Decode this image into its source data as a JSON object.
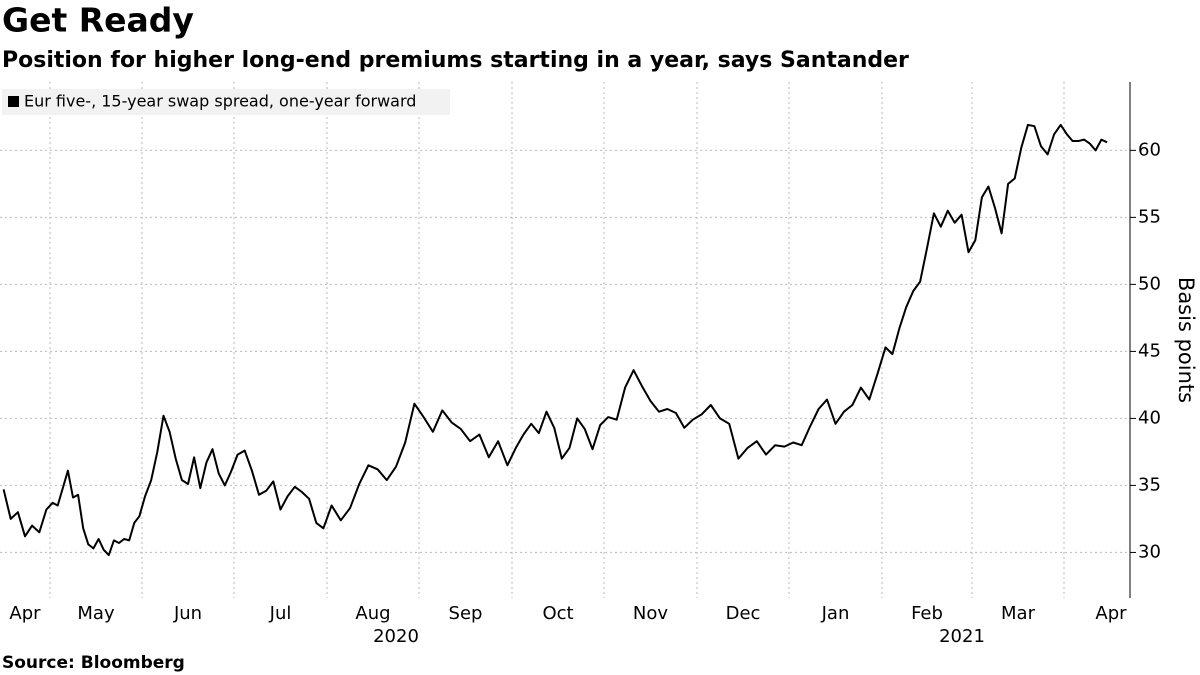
{
  "chart_data": {
    "type": "line",
    "title": "Get Ready",
    "subtitle": "Position for higher long-end premiums starting in a year, says Santander",
    "source": "Source: Bloomberg",
    "y_label": "Basis points",
    "x": [
      "2020-04",
      "2020-04",
      "2020-04",
      "2020-04",
      "2020-04",
      "2020-04",
      "2020-04",
      "2020-05",
      "2020-05",
      "2020-05",
      "2020-05",
      "2020-05",
      "2020-05",
      "2020-05",
      "2020-05",
      "2020-05",
      "2020-05",
      "2020-05",
      "2020-05",
      "2020-05",
      "2020-05",
      "2020-05",
      "2020-05",
      "2020-05",
      "2020-05",
      "2020-06",
      "2020-06",
      "2020-06",
      "2020-06",
      "2020-06",
      "2020-06",
      "2020-06",
      "2020-06",
      "2020-06",
      "2020-06",
      "2020-06",
      "2020-06",
      "2020-06",
      "2020-06",
      "2020-06",
      "2020-07",
      "2020-07",
      "2020-07",
      "2020-07",
      "2020-07",
      "2020-07",
      "2020-07",
      "2020-07",
      "2020-07",
      "2020-07",
      "2020-07",
      "2020-07",
      "2020-07",
      "2020-08",
      "2020-08",
      "2020-08",
      "2020-08",
      "2020-08",
      "2020-08",
      "2020-08",
      "2020-08",
      "2020-08",
      "2020-08",
      "2020-09",
      "2020-09",
      "2020-09",
      "2020-09",
      "2020-09",
      "2020-09",
      "2020-09",
      "2020-09",
      "2020-09",
      "2020-09",
      "2020-10",
      "2020-10",
      "2020-10",
      "2020-10",
      "2020-10",
      "2020-10",
      "2020-10",
      "2020-10",
      "2020-10",
      "2020-10",
      "2020-10",
      "2020-10",
      "2020-11",
      "2020-11",
      "2020-11",
      "2020-11",
      "2020-11",
      "2020-11",
      "2020-11",
      "2020-11",
      "2020-11",
      "2020-11",
      "2020-11",
      "2020-12",
      "2020-12",
      "2020-12",
      "2020-12",
      "2020-12",
      "2020-12",
      "2020-12",
      "2020-12",
      "2020-12",
      "2020-12",
      "2021-01",
      "2021-01",
      "2021-01",
      "2021-01",
      "2021-01",
      "2021-01",
      "2021-01",
      "2021-01",
      "2021-01",
      "2021-01",
      "2021-01",
      "2021-02",
      "2021-02",
      "2021-02",
      "2021-02",
      "2021-02",
      "2021-02",
      "2021-02",
      "2021-02",
      "2021-02",
      "2021-02",
      "2021-02",
      "2021-02",
      "2021-02",
      "2021-03",
      "2021-03",
      "2021-03",
      "2021-03",
      "2021-03",
      "2021-03",
      "2021-03",
      "2021-03",
      "2021-03",
      "2021-03",
      "2021-03",
      "2021-03",
      "2021-03",
      "2021-03",
      "2021-04",
      "2021-04",
      "2021-04",
      "2021-04",
      "2021-04",
      "2021-04",
      "2021-04",
      "2021-04"
    ],
    "series": [
      {
        "name": "Eur five-, 15-year swap spread, one-year forward",
        "color": "#000000",
        "values": [
          34.7,
          32.5,
          33,
          31.2,
          32,
          31.5,
          33.2,
          33.7,
          33.5,
          34.8,
          36.1,
          34.1,
          34.3,
          31.8,
          30.6,
          30.3,
          31,
          30.2,
          29.8,
          30.9,
          30.7,
          31,
          30.9,
          32.2,
          32.7,
          34.2,
          35.4,
          37.5,
          40.2,
          39,
          37,
          35.4,
          35.1,
          37.1,
          34.8,
          36.7,
          37.7,
          35.9,
          35,
          36,
          37.3,
          37.6,
          36.1,
          34.3,
          34.6,
          35.3,
          33.2,
          34.2,
          34.9,
          34.5,
          34,
          32.2,
          31.8,
          33.5,
          32.4,
          33.3,
          35.1,
          36.5,
          36.2,
          35.4,
          36.4,
          38.2,
          41.1,
          40.1,
          39,
          40.6,
          39.7,
          39.2,
          38.3,
          38.8,
          37.1,
          38.3,
          36.5,
          37.8,
          38.8,
          39.6,
          38.9,
          40.5,
          39.3,
          37,
          37.8,
          40,
          39.2,
          37.7,
          39.5,
          40.1,
          39.9,
          42.3,
          43.6,
          42.4,
          41.3,
          40.5,
          40.7,
          40.4,
          39.3,
          39.9,
          40.3,
          41,
          40,
          39.6,
          37,
          37.8,
          38.3,
          37.3,
          38,
          37.9,
          38.2,
          38,
          39.4,
          40.7,
          41.4,
          39.6,
          40.5,
          41,
          42.3,
          41.4,
          43.4,
          45.3,
          44.8,
          46.7,
          48.3,
          49.5,
          50.2,
          52.7,
          55.3,
          54.3,
          55.5,
          54.6,
          55.2,
          52.4,
          53.3,
          56.5,
          57.3,
          55.7,
          53.8,
          57.5,
          57.9,
          60.2,
          61.9,
          61.8,
          60.3,
          59.7,
          61.2,
          61.9,
          61.2,
          60.7,
          60.7,
          60.8,
          60.5,
          60,
          60.8,
          60.6
        ]
      }
    ],
    "xticks": [
      {
        "value": "2020-04",
        "label": "Apr"
      },
      {
        "value": "2020-05",
        "label": "May"
      },
      {
        "value": "2020-06",
        "label": "Jun"
      },
      {
        "value": "2020-07",
        "label": "Jul"
      },
      {
        "value": "2020-08",
        "label": "Aug"
      },
      {
        "value": "2020-09",
        "label": "Sep"
      },
      {
        "value": "2020-10",
        "label": "Oct"
      },
      {
        "value": "2020-11",
        "label": "Nov"
      },
      {
        "value": "2020-12",
        "label": "Dec"
      },
      {
        "value": "2021-01",
        "label": "Jan"
      },
      {
        "value": "2021-02",
        "label": "Feb"
      },
      {
        "value": "2021-03",
        "label": "Mar"
      },
      {
        "value": "2021-04",
        "label": "Apr"
      }
    ],
    "x_year_labels": [
      "2020",
      "2021"
    ],
    "ylim": [
      26.6,
      65.1
    ],
    "yticks": [
      30,
      35,
      40,
      45,
      50,
      55,
      60
    ],
    "grid": true,
    "legend": "top-left"
  }
}
